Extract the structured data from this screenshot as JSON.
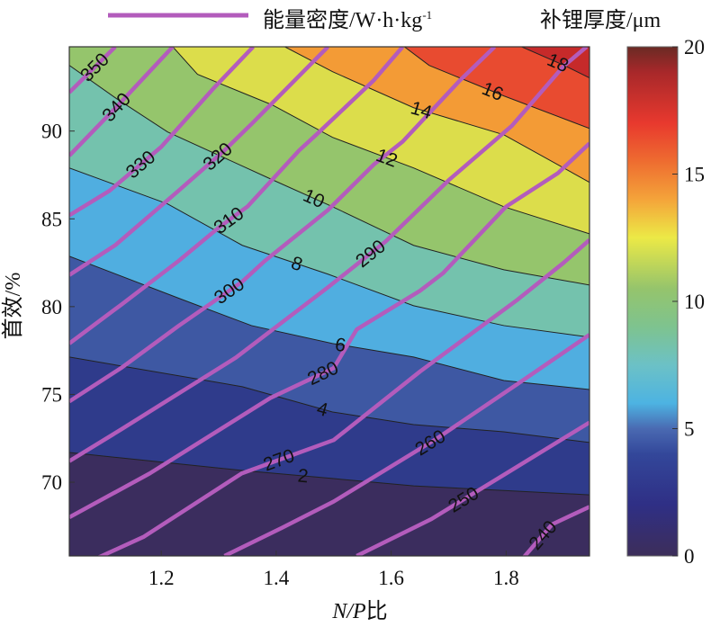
{
  "chart_data": {
    "type": "contour",
    "xlabel_italic": "N/P",
    "xlabel_suffix": "比",
    "ylabel": "首效/%",
    "xlim": [
      1.04,
      1.945
    ],
    "ylim": [
      65.8,
      94.8
    ],
    "xticks": [
      "1.2",
      "1.4",
      "1.6",
      "1.8"
    ],
    "xtick_values": [
      1.2,
      1.4,
      1.6,
      1.8
    ],
    "yticks": [
      "70",
      "75",
      "80",
      "85",
      "90"
    ],
    "ytick_values": [
      70,
      75,
      80,
      85,
      90
    ],
    "legend": {
      "line_label_main": "能量密度/W·h·kg",
      "line_label_sup": "-1",
      "line_color": "#b35cbc",
      "colorbar_title": "补锂厚度/μm"
    },
    "colorbar": {
      "range": [
        0,
        20
      ],
      "ticks": [
        "0",
        "5",
        "10",
        "15",
        "20"
      ],
      "tick_values": [
        0,
        5,
        10,
        15,
        20
      ],
      "gradient": [
        [
          0,
          "#3d2e5a"
        ],
        [
          2,
          "#2f2f85"
        ],
        [
          4,
          "#33479a"
        ],
        [
          5,
          "#4a6ab2"
        ],
        [
          6,
          "#4db3e2"
        ],
        [
          7.5,
          "#6cc1c6"
        ],
        [
          9,
          "#7ec38f"
        ],
        [
          10.5,
          "#95c46c"
        ],
        [
          12.5,
          "#ece946"
        ],
        [
          14,
          "#f4a43a"
        ],
        [
          15.5,
          "#ee6c30"
        ],
        [
          17,
          "#e8392e"
        ],
        [
          19,
          "#a8282a"
        ],
        [
          20,
          "#6a2a24"
        ]
      ]
    },
    "filled_contours": {
      "name": "补锂厚度/μm",
      "base_color": "#3b2d5e",
      "levels": [
        {
          "level": 2,
          "label": "2",
          "color": "#2f3b8b",
          "points": [
            [
              1.04,
              71.69
            ],
            [
              1.341,
              70.67
            ],
            [
              1.498,
              70.21
            ],
            [
              1.639,
              69.79
            ],
            [
              1.945,
              69.28
            ]
          ]
        },
        {
          "level": 4,
          "label": "4",
          "color": "#3e58a3",
          "points": [
            [
              1.04,
              77.13
            ],
            [
              1.341,
              75.44
            ],
            [
              1.498,
              74.0
            ],
            [
              1.639,
              73.28
            ],
            [
              1.796,
              72.87
            ],
            [
              1.945,
              72.26
            ]
          ]
        },
        {
          "level": 6,
          "label": "6",
          "color": "#50aee0",
          "points": [
            [
              1.04,
              82.87
            ],
            [
              1.236,
              80.41
            ],
            [
              1.357,
              78.92
            ],
            [
              1.498,
              77.9
            ],
            [
              1.639,
              77.13
            ],
            [
              1.796,
              75.79
            ],
            [
              1.945,
              75.28
            ]
          ]
        },
        {
          "level": 8,
          "label": "8",
          "color": "#74c2ad",
          "points": [
            [
              1.04,
              87.9
            ],
            [
              1.211,
              85.85
            ],
            [
              1.341,
              83.49
            ],
            [
              1.49,
              81.85
            ],
            [
              1.639,
              80.05
            ],
            [
              1.796,
              78.92
            ],
            [
              1.945,
              78.26
            ]
          ]
        },
        {
          "level": 10,
          "label": "10",
          "color": "#95c56c",
          "points": [
            [
              1.04,
              93.74
            ],
            [
              1.122,
              91.85
            ],
            [
              1.211,
              89.95
            ],
            [
              1.393,
              87.23
            ],
            [
              1.498,
              85.69
            ],
            [
              1.639,
              83.49
            ],
            [
              1.796,
              82.1
            ],
            [
              1.945,
              81.23
            ]
          ]
        },
        {
          "level": 12,
          "label": "12",
          "color": "#dcdd4b",
          "points": [
            [
              1.22,
              94.8
            ],
            [
              1.263,
              93.23
            ],
            [
              1.393,
              91.49
            ],
            [
              1.498,
              89.64
            ],
            [
              1.639,
              87.9
            ],
            [
              1.796,
              85.69
            ],
            [
              1.945,
              84.15
            ]
          ]
        },
        {
          "level": 14,
          "label": "14",
          "color": "#f39b36",
          "points": [
            [
              1.415,
              94.8
            ],
            [
              1.498,
              93.38
            ],
            [
              1.639,
              91.33
            ],
            [
              1.796,
              89.79
            ],
            [
              1.945,
              87.08
            ]
          ]
        },
        {
          "level": 16,
          "label": "16",
          "color": "#e84b30",
          "points": [
            [
              1.623,
              94.8
            ],
            [
              1.666,
              93.74
            ],
            [
              1.796,
              92.0
            ],
            [
              1.945,
              90.15
            ]
          ]
        },
        {
          "level": 18,
          "label": "18",
          "color": "#c62a2a",
          "points": [
            [
              1.827,
              94.8
            ],
            [
              1.901,
              93.74
            ],
            [
              1.945,
              93.03
            ]
          ]
        }
      ]
    },
    "line_contours": {
      "name": "能量密度/W·h·kg-1",
      "lines": [
        {
          "level": 240,
          "label": "240",
          "points": [
            [
              1.83,
              65.7
            ],
            [
              1.88,
              67.6
            ],
            [
              1.945,
              68.6
            ]
          ]
        },
        {
          "level": 250,
          "label": "250",
          "points": [
            [
              1.54,
              65.8
            ],
            [
              1.67,
              67.9
            ],
            [
              1.8,
              70.5
            ],
            [
              1.945,
              73.4
            ]
          ]
        },
        {
          "level": 260,
          "label": "260",
          "points": [
            [
              1.31,
              65.8
            ],
            [
              1.41,
              67.4
            ],
            [
              1.5,
              68.9
            ],
            [
              1.68,
              72.5
            ],
            [
              1.82,
              75.6
            ],
            [
              1.945,
              78.4
            ]
          ]
        },
        {
          "level": 270,
          "label": "270",
          "points": [
            [
              1.09,
              65.7
            ],
            [
              1.17,
              66.9
            ],
            [
              1.34,
              70.5
            ],
            [
              1.5,
              72.4
            ],
            [
              1.65,
              76.3
            ],
            [
              1.82,
              80.4
            ],
            [
              1.9,
              82.5
            ],
            [
              1.945,
              83.8
            ]
          ]
        },
        {
          "level": 280,
          "label": "280",
          "points": [
            [
              1.04,
              68.0
            ],
            [
              1.18,
              70.5
            ],
            [
              1.39,
              74.8
            ],
            [
              1.5,
              76.5
            ],
            [
              1.54,
              78.7
            ],
            [
              1.65,
              80.9
            ],
            [
              1.69,
              81.9
            ],
            [
              1.8,
              85.7
            ],
            [
              1.89,
              87.6
            ],
            [
              1.945,
              89.3
            ]
          ]
        },
        {
          "level": 290,
          "label": "290",
          "points": [
            [
              1.04,
              71.2
            ],
            [
              1.13,
              73.0
            ],
            [
              1.33,
              77.1
            ],
            [
              1.49,
              81.1
            ],
            [
              1.59,
              83.7
            ],
            [
              1.7,
              87.2
            ],
            [
              1.81,
              90.3
            ],
            [
              1.9,
              93.7
            ],
            [
              1.94,
              94.8
            ]
          ]
        },
        {
          "level": 300,
          "label": "300",
          "points": [
            [
              1.04,
              74.6
            ],
            [
              1.13,
              76.5
            ],
            [
              1.23,
              78.9
            ],
            [
              1.34,
              81.4
            ],
            [
              1.38,
              82.6
            ],
            [
              1.49,
              85.5
            ],
            [
              1.57,
              88.1
            ],
            [
              1.62,
              89.4
            ],
            [
              1.72,
              92.9
            ],
            [
              1.78,
              94.8
            ]
          ]
        },
        {
          "level": 310,
          "label": "310",
          "points": [
            [
              1.04,
              77.9
            ],
            [
              1.13,
              80.1
            ],
            [
              1.23,
              82.6
            ],
            [
              1.3,
              84.5
            ],
            [
              1.35,
              85.7
            ],
            [
              1.44,
              88.9
            ],
            [
              1.47,
              89.8
            ],
            [
              1.57,
              92.9
            ],
            [
              1.62,
              94.8
            ]
          ]
        },
        {
          "level": 320,
          "label": "320",
          "points": [
            [
              1.04,
              81.8
            ],
            [
              1.12,
              83.5
            ],
            [
              1.23,
              86.6
            ],
            [
              1.31,
              88.9
            ],
            [
              1.36,
              90.5
            ],
            [
              1.49,
              94.8
            ]
          ]
        },
        {
          "level": 330,
          "label": "330",
          "points": [
            [
              1.04,
              85.2
            ],
            [
              1.11,
              86.6
            ],
            [
              1.2,
              89.1
            ],
            [
              1.29,
              92.4
            ],
            [
              1.36,
              94.8
            ]
          ]
        },
        {
          "level": 340,
          "label": "340",
          "points": [
            [
              1.04,
              88.6
            ],
            [
              1.12,
              91.3
            ],
            [
              1.22,
              94.8
            ]
          ]
        },
        {
          "level": 350,
          "label": "350",
          "points": [
            [
              1.04,
              92.2
            ],
            [
              1.12,
              94.8
            ]
          ]
        }
      ]
    }
  }
}
